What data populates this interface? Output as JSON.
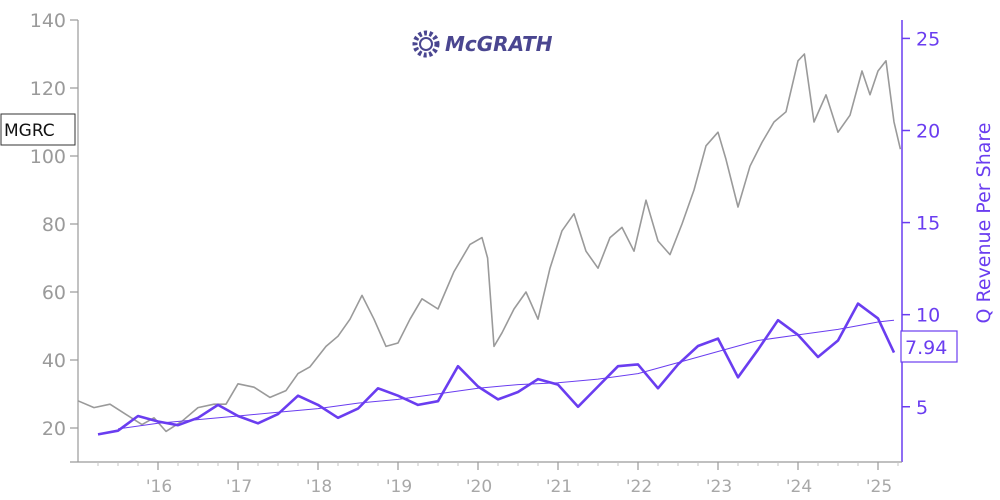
{
  "logo": {
    "text": "McGRATH",
    "brand_color": "#4a4690"
  },
  "ticker": "MGRC",
  "last_value_label": "7.94",
  "colors": {
    "price": "#9a9a9a",
    "revenue": "#6a3df0",
    "trend": "#6a3df0",
    "axis_left": "#9a9a9a",
    "axis_right": "#6a3df0"
  },
  "chart_data": {
    "type": "line",
    "x_tick_labels": [
      "'16",
      "'17",
      "'18",
      "'19",
      "'20",
      "'21",
      "'22",
      "'23",
      "'24",
      "'25"
    ],
    "x_ticks": [
      2016,
      2017,
      2018,
      2019,
      2020,
      2021,
      2022,
      2023,
      2024,
      2025
    ],
    "xlim": [
      2015.0,
      2025.3
    ],
    "left_axis": {
      "label": "",
      "ylim": [
        10,
        140
      ],
      "ticks": [
        20,
        40,
        60,
        80,
        100,
        120,
        140
      ]
    },
    "right_axis": {
      "label": "Q Revenue Per Share",
      "ylim": [
        2,
        26
      ],
      "ticks": [
        5,
        10,
        15,
        20,
        25
      ]
    },
    "series": [
      {
        "name": "MGRC",
        "axis": "left",
        "style": "price",
        "x": [
          2015.0,
          2015.2,
          2015.4,
          2015.6,
          2015.8,
          2015.95,
          2016.1,
          2016.3,
          2016.5,
          2016.7,
          2016.85,
          2017.0,
          2017.2,
          2017.4,
          2017.6,
          2017.75,
          2017.9,
          2018.1,
          2018.25,
          2018.4,
          2018.55,
          2018.7,
          2018.85,
          2019.0,
          2019.15,
          2019.3,
          2019.5,
          2019.7,
          2019.9,
          2020.05,
          2020.12,
          2020.2,
          2020.3,
          2020.45,
          2020.6,
          2020.75,
          2020.9,
          2021.05,
          2021.2,
          2021.35,
          2021.5,
          2021.65,
          2021.8,
          2021.95,
          2022.1,
          2022.25,
          2022.4,
          2022.55,
          2022.7,
          2022.85,
          2023.0,
          2023.1,
          2023.25,
          2023.4,
          2023.55,
          2023.7,
          2023.85,
          2024.0,
          2024.08,
          2024.2,
          2024.35,
          2024.5,
          2024.65,
          2024.8,
          2024.9,
          2025.0,
          2025.1,
          2025.2,
          2025.28
        ],
        "values": [
          28,
          26,
          27,
          24,
          21,
          23,
          19,
          22,
          26,
          27,
          27,
          33,
          32,
          29,
          31,
          36,
          38,
          44,
          47,
          52,
          59,
          52,
          44,
          45,
          52,
          58,
          55,
          66,
          74,
          76,
          70,
          44,
          48,
          55,
          60,
          52,
          67,
          78,
          83,
          72,
          67,
          76,
          79,
          72,
          87,
          75,
          71,
          80,
          90,
          103,
          107,
          99,
          85,
          97,
          104,
          110,
          113,
          128,
          130,
          110,
          118,
          107,
          112,
          125,
          118,
          125,
          128,
          110,
          102
        ]
      },
      {
        "name": "Q Revenue Per Share",
        "axis": "right",
        "style": "revenue",
        "x": [
          2015.25,
          2015.5,
          2015.75,
          2016.0,
          2016.25,
          2016.5,
          2016.75,
          2017.0,
          2017.25,
          2017.5,
          2017.75,
          2018.0,
          2018.25,
          2018.5,
          2018.75,
          2019.0,
          2019.25,
          2019.5,
          2019.75,
          2020.0,
          2020.25,
          2020.5,
          2020.75,
          2021.0,
          2021.25,
          2021.5,
          2021.75,
          2022.0,
          2022.25,
          2022.5,
          2022.75,
          2023.0,
          2023.25,
          2023.5,
          2023.75,
          2024.0,
          2024.25,
          2024.5,
          2024.75,
          2025.0,
          2025.2
        ],
        "values": [
          3.5,
          3.7,
          4.5,
          4.2,
          4.0,
          4.4,
          5.1,
          4.5,
          4.1,
          4.6,
          5.6,
          5.1,
          4.4,
          4.9,
          6.0,
          5.6,
          5.1,
          5.3,
          7.2,
          6.1,
          5.4,
          5.8,
          6.5,
          6.2,
          5.0,
          6.1,
          7.2,
          7.3,
          6.0,
          7.3,
          8.3,
          8.7,
          6.6,
          8.1,
          9.7,
          8.9,
          7.7,
          8.6,
          10.6,
          9.8,
          7.94
        ]
      },
      {
        "name": "trend",
        "axis": "right",
        "style": "trend",
        "x": [
          2015.5,
          2016.0,
          2016.5,
          2017.0,
          2017.5,
          2018.0,
          2018.5,
          2019.0,
          2019.5,
          2020.0,
          2020.5,
          2021.0,
          2021.5,
          2022.0,
          2022.5,
          2023.0,
          2023.5,
          2024.0,
          2024.5,
          2025.0,
          2025.2
        ],
        "values": [
          3.8,
          4.1,
          4.3,
          4.5,
          4.7,
          4.9,
          5.2,
          5.4,
          5.7,
          6.0,
          6.2,
          6.3,
          6.5,
          6.8,
          7.4,
          8.0,
          8.6,
          8.9,
          9.2,
          9.6,
          9.7
        ]
      }
    ]
  }
}
